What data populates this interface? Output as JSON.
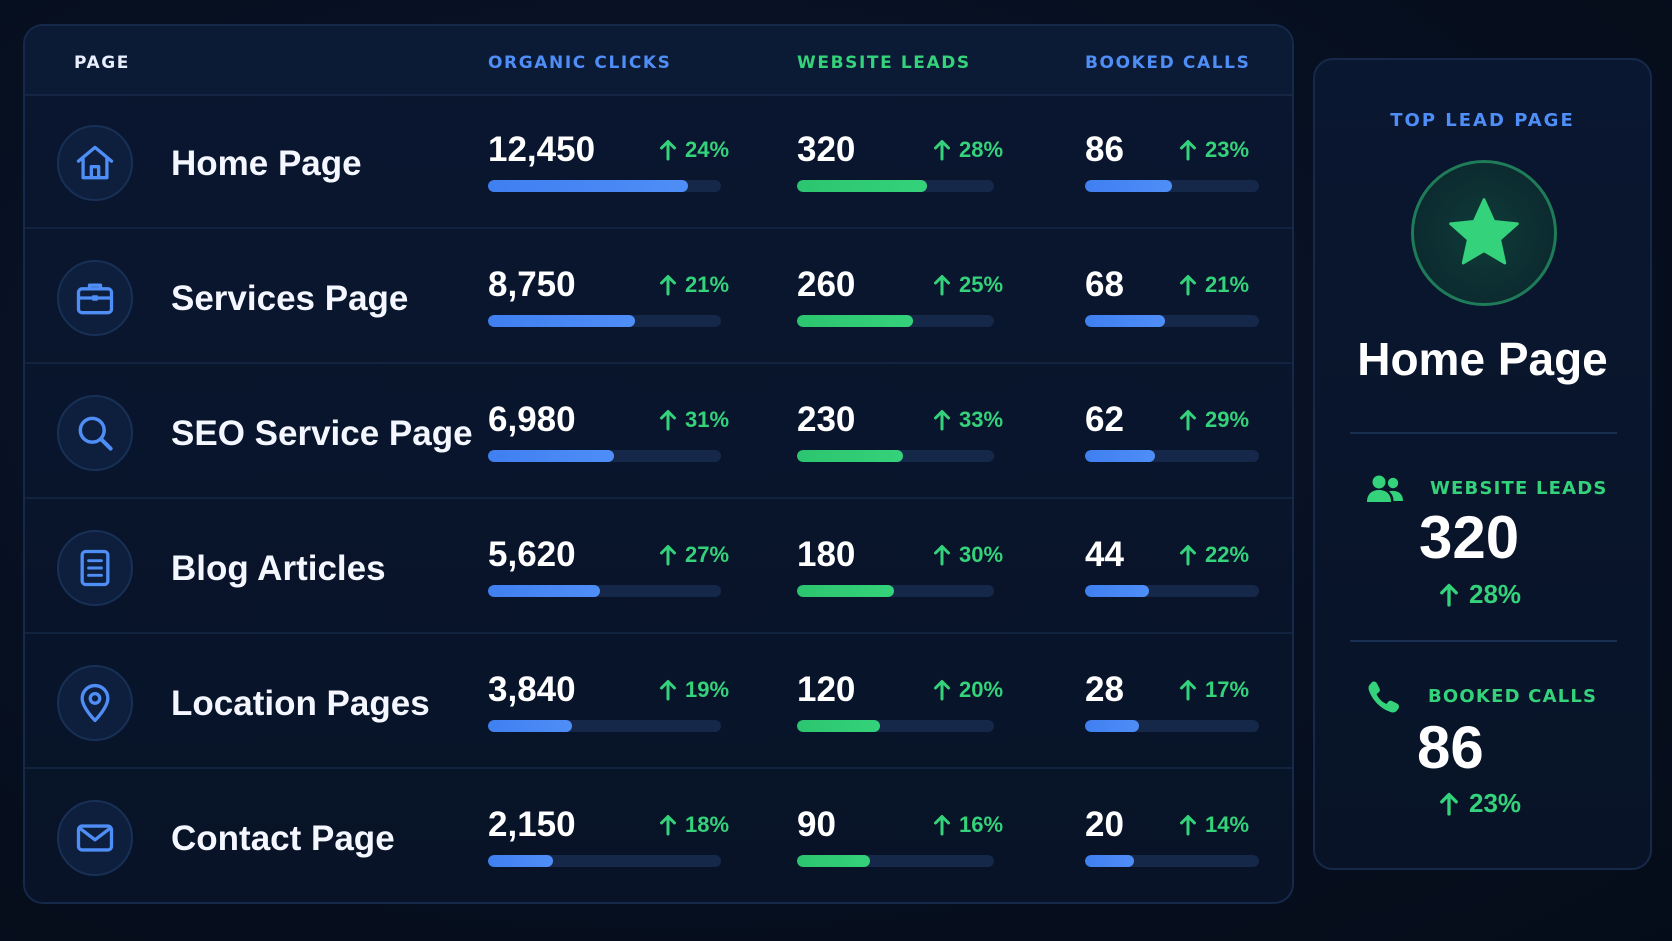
{
  "colors": {
    "background": "#071021",
    "panel": "#0a1730",
    "blue_accent": "#4f8ef7",
    "green_accent": "#34d27a",
    "text": "#ffffff"
  },
  "table": {
    "headers": {
      "page": "PAGE",
      "organic_clicks": "ORGANIC CLICKS",
      "website_leads": "WEBSITE LEADS",
      "booked_calls": "BOOKED CALLS"
    },
    "rows": [
      {
        "icon": "home-icon",
        "name": "Home Page",
        "organic_clicks": {
          "value": "12,450",
          "change": "24%",
          "bar_fraction": 0.86
        },
        "website_leads": {
          "value": "320",
          "change": "28%",
          "bar_fraction": 0.66
        },
        "booked_calls": {
          "value": "86",
          "change": "23%",
          "bar_fraction": 0.5
        }
      },
      {
        "icon": "briefcase-icon",
        "name": "Services Page",
        "organic_clicks": {
          "value": "8,750",
          "change": "21%",
          "bar_fraction": 0.63
        },
        "website_leads": {
          "value": "260",
          "change": "25%",
          "bar_fraction": 0.59
        },
        "booked_calls": {
          "value": "68",
          "change": "21%",
          "bar_fraction": 0.46
        }
      },
      {
        "icon": "search-icon",
        "name": "SEO Service Page",
        "organic_clicks": {
          "value": "6,980",
          "change": "31%",
          "bar_fraction": 0.54
        },
        "website_leads": {
          "value": "230",
          "change": "33%",
          "bar_fraction": 0.54
        },
        "booked_calls": {
          "value": "62",
          "change": "29%",
          "bar_fraction": 0.4
        }
      },
      {
        "icon": "document-icon",
        "name": "Blog Articles",
        "organic_clicks": {
          "value": "5,620",
          "change": "27%",
          "bar_fraction": 0.48
        },
        "website_leads": {
          "value": "180",
          "change": "30%",
          "bar_fraction": 0.49
        },
        "booked_calls": {
          "value": "44",
          "change": "22%",
          "bar_fraction": 0.37
        }
      },
      {
        "icon": "location-pin-icon",
        "name": "Location Pages",
        "organic_clicks": {
          "value": "3,840",
          "change": "19%",
          "bar_fraction": 0.36
        },
        "website_leads": {
          "value": "120",
          "change": "20%",
          "bar_fraction": 0.42
        },
        "booked_calls": {
          "value": "28",
          "change": "17%",
          "bar_fraction": 0.31
        }
      },
      {
        "icon": "mail-icon",
        "name": "Contact Page",
        "organic_clicks": {
          "value": "2,150",
          "change": "18%",
          "bar_fraction": 0.28
        },
        "website_leads": {
          "value": "90",
          "change": "16%",
          "bar_fraction": 0.37
        },
        "booked_calls": {
          "value": "20",
          "change": "14%",
          "bar_fraction": 0.28
        }
      }
    ]
  },
  "side_card": {
    "title": "TOP LEAD PAGE",
    "badge_icon": "star-icon",
    "page_name": "Home Page",
    "website_leads": {
      "icon": "users-icon",
      "label": "WEBSITE LEADS",
      "value": "320",
      "change": "28%"
    },
    "booked_calls": {
      "icon": "phone-icon",
      "label": "BOOKED CALLS",
      "value": "86",
      "change": "23%"
    }
  }
}
